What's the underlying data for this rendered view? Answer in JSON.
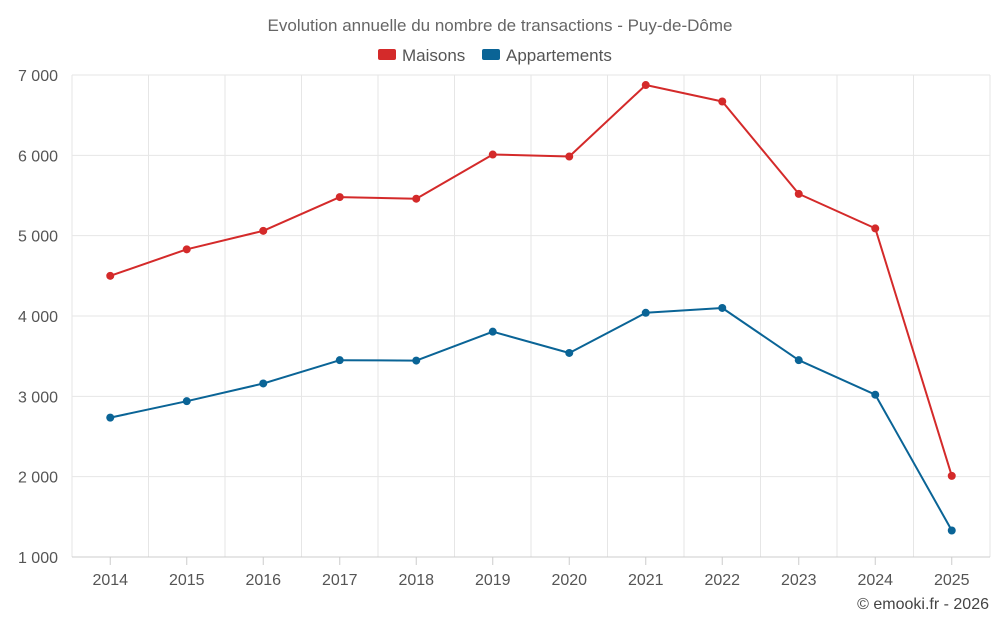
{
  "chart_data": {
    "type": "line",
    "title": "Evolution annuelle du nombre de transactions - Puy-de-Dôme",
    "categories": [
      "2014",
      "2015",
      "2016",
      "2017",
      "2018",
      "2019",
      "2020",
      "2021",
      "2022",
      "2023",
      "2024",
      "2025"
    ],
    "series": [
      {
        "name": "Maisons",
        "color": "#d42a2a",
        "values": [
          4500,
          4830,
          5060,
          5480,
          5460,
          6010,
          5985,
          6875,
          6670,
          5520,
          5090,
          2010
        ]
      },
      {
        "name": "Appartements",
        "color": "#0a6496",
        "values": [
          2735,
          2940,
          3160,
          3450,
          3445,
          3805,
          3540,
          4040,
          4100,
          3450,
          3020,
          1330
        ]
      }
    ],
    "y_ticks": [
      "1 000",
      "2 000",
      "3 000",
      "4 000",
      "5 000",
      "6 000",
      "7 000"
    ],
    "y_tick_values": [
      1000,
      2000,
      3000,
      4000,
      5000,
      6000,
      7000
    ],
    "ylim": [
      1000,
      7000
    ],
    "legend_position": "top-center",
    "grid": true
  },
  "credit": "© emooki.fr - 2026"
}
